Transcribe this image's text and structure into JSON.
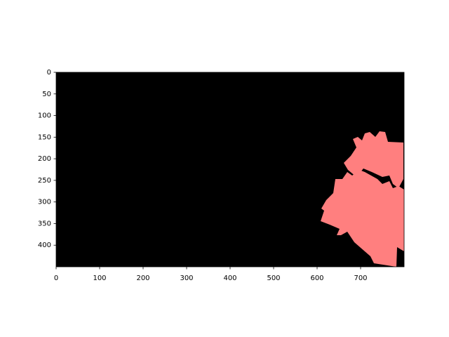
{
  "chart_data": {
    "type": "image",
    "xlim": [
      0,
      800
    ],
    "ylim": [
      450,
      0
    ],
    "xticks": [
      0,
      100,
      200,
      300,
      400,
      500,
      600,
      700
    ],
    "yticks": [
      0,
      50,
      100,
      150,
      200,
      250,
      300,
      350,
      400
    ],
    "background": "#000000",
    "color": "#ff7f7f"
  }
}
